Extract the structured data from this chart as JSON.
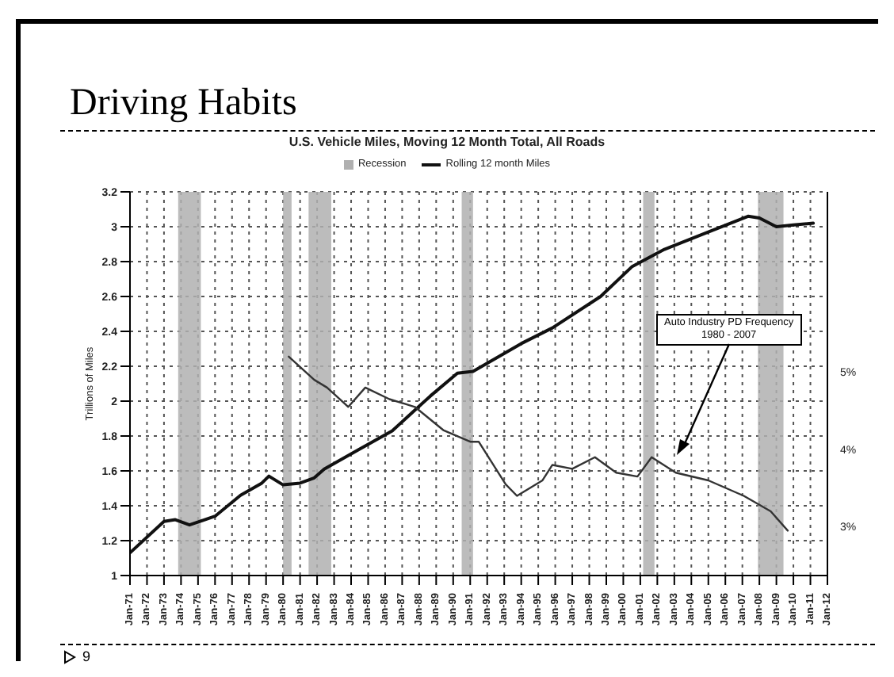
{
  "chart_data": {
    "type": "line",
    "title": "Driving Habits",
    "subtitle": "U.S. Vehicle Miles, Moving 12 Month Total, All Roads",
    "ylabel": "Trillions of Miles",
    "annotations": [
      "Auto Industry PD Frequency\n1980 - 2007",
      "9"
    ],
    "xlim": [
      "1971-01",
      "2012-01"
    ],
    "xticks": [
      {
        "value": "1971-01",
        "label": "Jan-71"
      },
      {
        "value": "1972-01",
        "label": "Jan-72"
      },
      {
        "value": "1973-01",
        "label": "Jan-73"
      },
      {
        "value": "1974-01",
        "label": "Jan-74"
      },
      {
        "value": "1975-01",
        "label": "Jan-75"
      },
      {
        "value": "1976-01",
        "label": "Jan-76"
      },
      {
        "value": "1977-01",
        "label": "Jan-77"
      },
      {
        "value": "1978-01",
        "label": "Jan-78"
      },
      {
        "value": "1979-01",
        "label": "Jan-79"
      },
      {
        "value": "1980-01",
        "label": "Jan-80"
      },
      {
        "value": "1981-01",
        "label": "Jan-81"
      },
      {
        "value": "1982-01",
        "label": "Jan-82"
      },
      {
        "value": "1983-01",
        "label": "Jan-83"
      },
      {
        "value": "1984-01",
        "label": "Jan-84"
      },
      {
        "value": "1985-01",
        "label": "Jan-85"
      },
      {
        "value": "1986-01",
        "label": "Jan-86"
      },
      {
        "value": "1987-01",
        "label": "Jan-87"
      },
      {
        "value": "1988-01",
        "label": "Jan-88"
      },
      {
        "value": "1989-01",
        "label": "Jan-89"
      },
      {
        "value": "1990-01",
        "label": "Jan-90"
      },
      {
        "value": "1991-01",
        "label": "Jan-91"
      },
      {
        "value": "1992-01",
        "label": "Jan-92"
      },
      {
        "value": "1993-01",
        "label": "Jan-93"
      },
      {
        "value": "1994-01",
        "label": "Jan-94"
      },
      {
        "value": "1995-01",
        "label": "Jan-95"
      },
      {
        "value": "1996-01",
        "label": "Jan-96"
      },
      {
        "value": "1997-01",
        "label": "Jan-97"
      },
      {
        "value": "1998-01",
        "label": "Jan-98"
      },
      {
        "value": "1999-01",
        "label": "Jan-99"
      },
      {
        "value": "2000-01",
        "label": "Jan-00"
      },
      {
        "value": "2001-01",
        "label": "Jan-01"
      },
      {
        "value": "2002-01",
        "label": "Jan-02"
      },
      {
        "value": "2003-01",
        "label": "Jan-03"
      },
      {
        "value": "2004-01",
        "label": "Jan-04"
      },
      {
        "value": "2005-01",
        "label": "Jan-05"
      },
      {
        "value": "2006-01",
        "label": "Jan-06"
      },
      {
        "value": "2007-01",
        "label": "Jan-07"
      },
      {
        "value": "2008-01",
        "label": "Jan-08"
      },
      {
        "value": "2009-01",
        "label": "Jan-09"
      },
      {
        "value": "2010-01",
        "label": "Jan-10"
      },
      {
        "value": "2011-01",
        "label": "Jan-11"
      },
      {
        "value": "2012-01",
        "label": "Jan-12"
      }
    ],
    "ylim": [
      1.0,
      3.2
    ],
    "yticks": [
      1.0,
      1.2,
      1.4,
      1.6,
      1.8,
      2.0,
      2.2,
      2.4,
      2.6,
      2.8,
      3.0,
      3.2
    ],
    "y2lim": [
      2.37,
      7.33
    ],
    "y2ticks": [
      {
        "value": 3,
        "label": "3%"
      },
      {
        "value": 4,
        "label": "4%"
      },
      {
        "value": 5,
        "label": "5%"
      }
    ],
    "grid": true,
    "legend": "top",
    "marker": "none",
    "line_style": "solid",
    "bands": [
      {
        "axis": "x",
        "from": "1973-11",
        "to": "1975-03",
        "label": "Recession",
        "color": "#b0b0b0"
      },
      {
        "axis": "x",
        "from": "1980-01",
        "to": "1980-07",
        "color": "#b0b0b0"
      },
      {
        "axis": "x",
        "from": "1981-07",
        "to": "1982-11",
        "color": "#b0b0b0"
      },
      {
        "axis": "x",
        "from": "1990-07",
        "to": "1991-03",
        "color": "#b0b0b0"
      },
      {
        "axis": "x",
        "from": "2001-03",
        "to": "2001-11",
        "color": "#b0b0b0"
      },
      {
        "axis": "x",
        "from": "2007-12",
        "to": "2009-06",
        "color": "#b0b0b0"
      }
    ],
    "series": [
      {
        "name": "Rolling 12 month Miles",
        "color": "#111111",
        "x": [
          "1971-01",
          "1973-01",
          "1973-09",
          "1974-07",
          "1976-01",
          "1977-07",
          "1978-10",
          "1979-03",
          "1980-01",
          "1981-01",
          "1981-11",
          "1982-06",
          "1984-06",
          "1986-06",
          "1988-09",
          "1990-04",
          "1991-03",
          "1994-01",
          "1995-11",
          "1998-09",
          "2000-07",
          "2002-06",
          "2005-01",
          "2007-05",
          "2008-01",
          "2009-01",
          "2010-01",
          "2011-03"
        ],
        "values": [
          1.13,
          1.31,
          1.32,
          1.29,
          1.34,
          1.46,
          1.53,
          1.57,
          1.52,
          1.53,
          1.56,
          1.61,
          1.72,
          1.83,
          2.03,
          2.16,
          2.17,
          2.33,
          2.42,
          2.6,
          2.77,
          2.87,
          2.97,
          3.06,
          3.05,
          3.0,
          3.01,
          3.02
        ]
      },
      {
        "color": "#333333",
        "axis": "y2",
        "x": [
          "1980-05",
          "1981-11",
          "1982-08",
          "1983-11",
          "1984-11",
          "1986-04",
          "1987-10",
          "1989-06",
          "1991-01",
          "1991-07",
          "1993-02",
          "1993-10",
          "1995-04",
          "1995-11",
          "1997-01",
          "1998-05",
          "1999-08",
          "2000-11",
          "2001-09",
          "2003-02",
          "2005-01",
          "2007-02",
          "2008-09",
          "2009-09"
        ],
        "values": [
          5.2,
          4.9,
          4.8,
          4.55,
          4.8,
          4.65,
          4.55,
          4.25,
          4.1,
          4.1,
          3.55,
          3.4,
          3.6,
          3.8,
          3.75,
          3.9,
          3.7,
          3.65,
          3.9,
          3.7,
          3.6,
          3.4,
          3.2,
          2.95
        ]
      }
    ]
  }
}
